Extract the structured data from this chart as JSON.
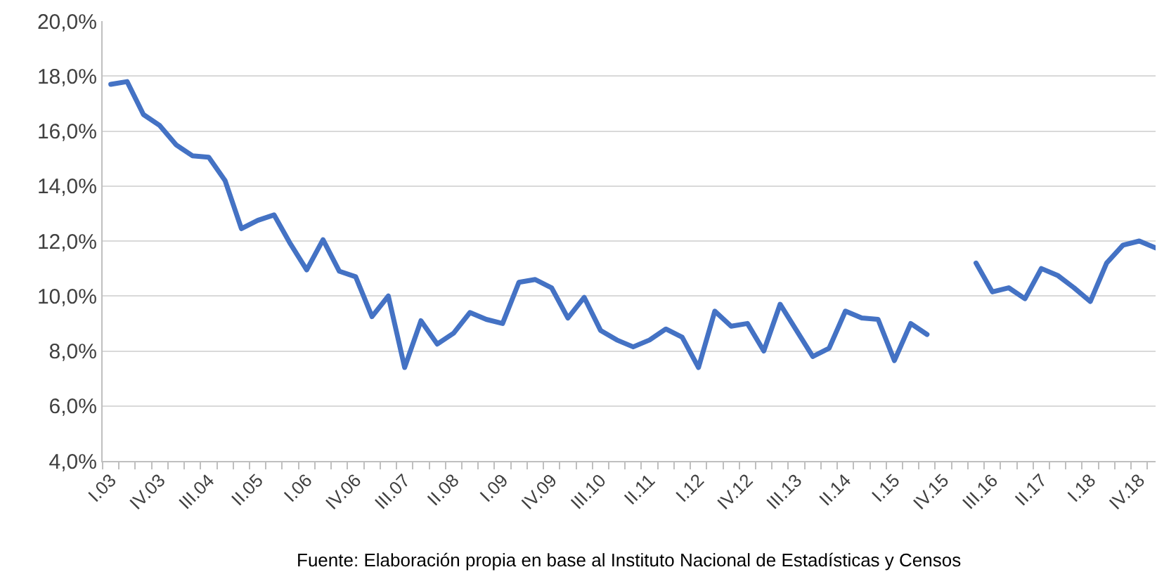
{
  "chart_data": {
    "type": "line",
    "categories": [
      "I.03",
      null,
      null,
      "IV.03",
      null,
      null,
      "III.04",
      null,
      null,
      "II.05",
      null,
      null,
      "I.06",
      null,
      null,
      "IV.06",
      null,
      null,
      "III.07",
      null,
      null,
      "II.08",
      null,
      null,
      "I.09",
      null,
      null,
      "IV.09",
      null,
      null,
      "III.10",
      null,
      null,
      "II.11",
      null,
      null,
      "I.12",
      null,
      null,
      "IV.12",
      null,
      null,
      "III.13",
      null,
      null,
      "II.14",
      null,
      null,
      "I.15",
      null,
      null,
      "IV.15",
      null,
      null,
      "III.16",
      null,
      null,
      "II.17",
      null,
      null,
      "I.18",
      null,
      null,
      "IV.18",
      null
    ],
    "series": [
      {
        "color": "#4472c4",
        "values": [
          17.7,
          17.8,
          16.6,
          16.2,
          15.5,
          15.1,
          15.05,
          14.2,
          12.45,
          12.75,
          12.95,
          11.9,
          10.95,
          12.05,
          10.9,
          10.7,
          9.25,
          10.0,
          7.4,
          9.1,
          8.25,
          8.65,
          9.4,
          9.15,
          9.0,
          10.5,
          10.6,
          10.3,
          9.2,
          9.95,
          8.75,
          8.4,
          8.15,
          8.4,
          8.8,
          8.5,
          7.4,
          9.45,
          8.9,
          9.0,
          8.0,
          9.7,
          8.75,
          7.8,
          8.1,
          9.45,
          9.2,
          9.15,
          7.65,
          9.0,
          8.6,
          null,
          null,
          11.2,
          10.15,
          10.3,
          9.9,
          11.0,
          10.75,
          10.3,
          9.8,
          11.2,
          11.85,
          12.0,
          11.75
        ]
      }
    ],
    "ylim": [
      4,
      20
    ],
    "yticks": [
      {
        "value": 4,
        "label": "4,0%"
      },
      {
        "value": 6,
        "label": "6,0%"
      },
      {
        "value": 8,
        "label": "8,0%"
      },
      {
        "value": 10,
        "label": "10,0%"
      },
      {
        "value": 12,
        "label": "12,0%"
      },
      {
        "value": 14,
        "label": "14,0%"
      },
      {
        "value": 16,
        "label": "16,0%"
      },
      {
        "value": 18,
        "label": "18,0%"
      },
      {
        "value": 20,
        "label": "20,0%"
      }
    ],
    "grid": "y",
    "marker": "none",
    "line_style": "solid",
    "annotations": [
      "Fuente: Elaboración propia en base al Instituto Nacional de Estadísticas y Censos"
    ]
  }
}
